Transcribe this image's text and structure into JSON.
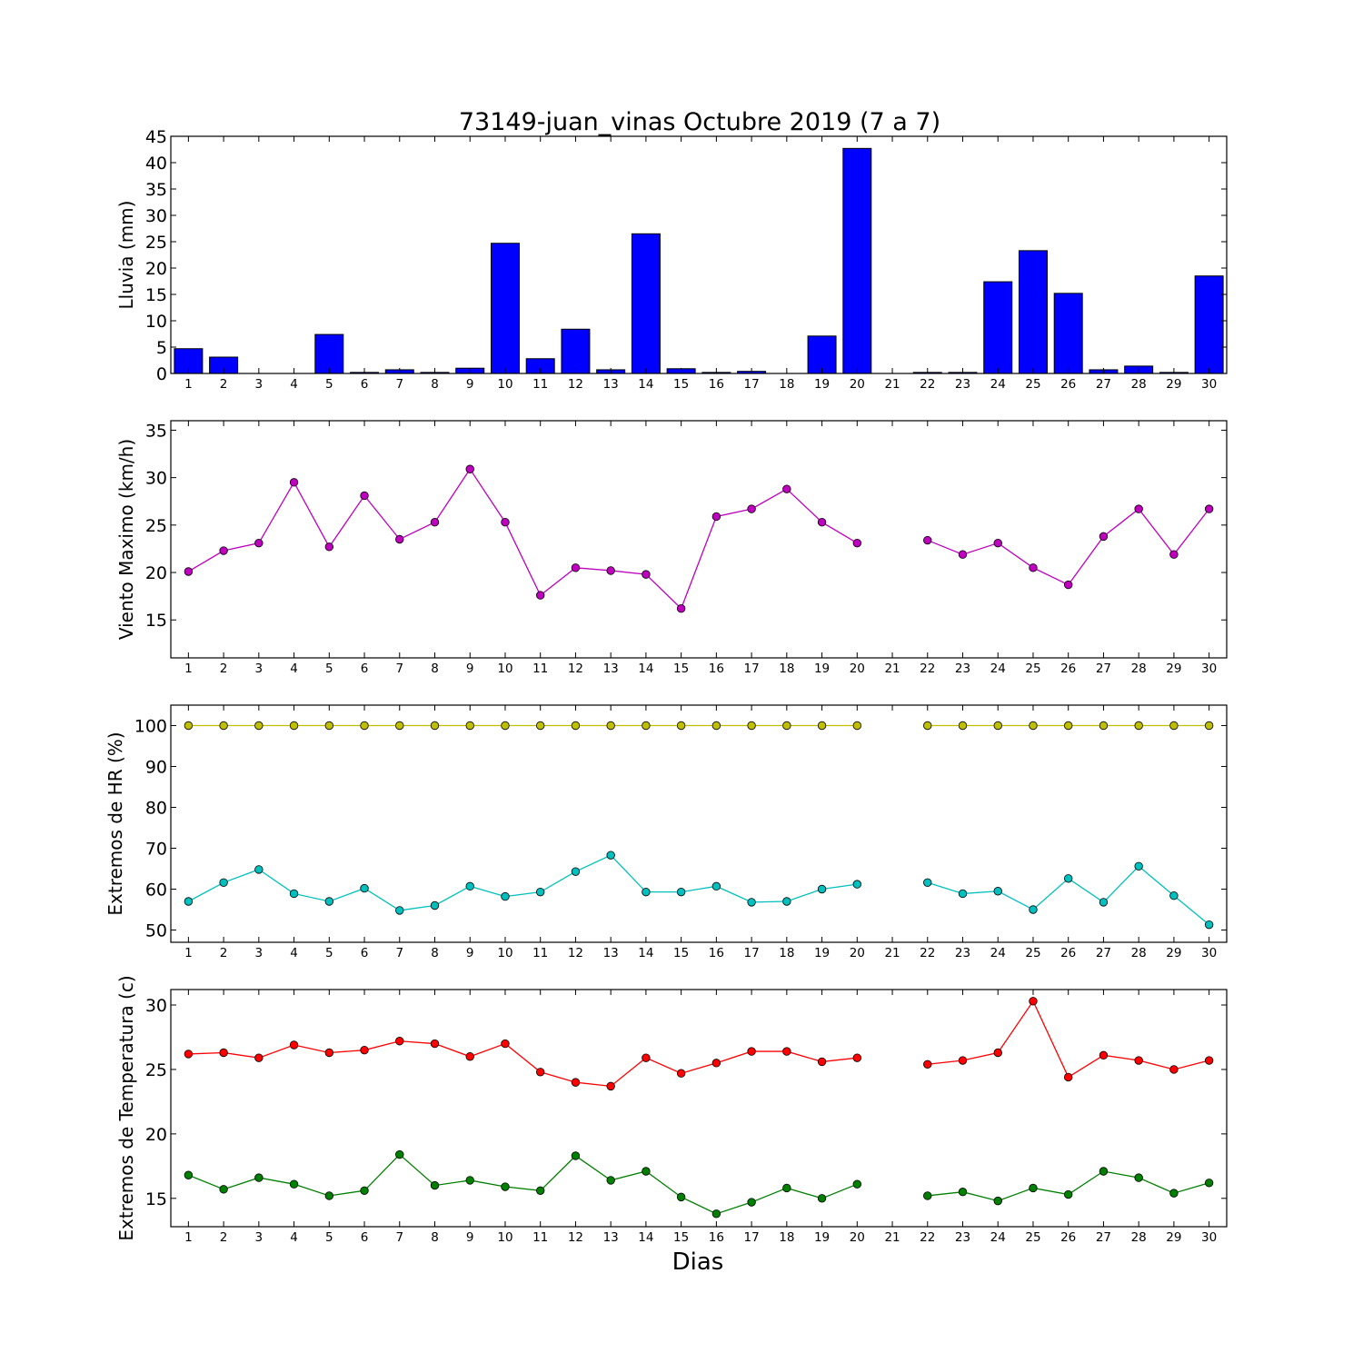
{
  "title": "73149-juan_vinas Octubre 2019  (7 a 7)",
  "xlabel": "Dias",
  "days": [
    1,
    2,
    3,
    4,
    5,
    6,
    7,
    8,
    9,
    10,
    11,
    12,
    13,
    14,
    15,
    16,
    17,
    18,
    19,
    20,
    21,
    22,
    23,
    24,
    25,
    26,
    27,
    28,
    29,
    30
  ],
  "chart_data": [
    {
      "type": "bar",
      "ylabel": "Lluvia (mm)",
      "ylim": [
        0,
        45
      ],
      "yticks": [
        0,
        5,
        10,
        15,
        20,
        25,
        30,
        35,
        40,
        45
      ],
      "grid": false,
      "color": "#0000ff",
      "series": [
        {
          "x": [
            1,
            2,
            3,
            4,
            5,
            6,
            7,
            8,
            9,
            10,
            11,
            12,
            13,
            14,
            15,
            16,
            17,
            18,
            19,
            20,
            21,
            22,
            23,
            24,
            25,
            26,
            27,
            28,
            29,
            30
          ],
          "values": [
            4.7,
            3.1,
            0,
            0,
            7.4,
            0.2,
            0.7,
            0.2,
            1.0,
            24.7,
            2.8,
            8.4,
            0.7,
            26.5,
            0.9,
            0.2,
            0.4,
            0,
            7.1,
            42.7,
            0,
            0.2,
            0.2,
            17.4,
            23.3,
            15.2,
            0.7,
            1.4,
            0.2,
            18.5
          ]
        }
      ]
    },
    {
      "type": "line",
      "ylabel": "Viento Maximo (km/h)",
      "ylim": [
        11,
        36
      ],
      "yticks": [
        15,
        20,
        25,
        30,
        35
      ],
      "grid": false,
      "series": [
        {
          "color": "#bf00bf",
          "x": [
            1,
            2,
            3,
            4,
            5,
            6,
            7,
            8,
            9,
            10,
            11,
            12,
            13,
            14,
            15,
            16,
            17,
            18,
            19,
            20,
            21,
            22,
            23,
            24,
            25,
            26,
            27,
            28,
            29,
            30
          ],
          "values": [
            20.1,
            22.3,
            23.1,
            29.5,
            22.7,
            28.1,
            23.5,
            25.3,
            30.9,
            25.3,
            17.6,
            20.5,
            20.2,
            19.8,
            16.2,
            25.9,
            26.7,
            28.8,
            25.3,
            23.1,
            null,
            23.4,
            21.9,
            23.1,
            20.5,
            18.7,
            23.8,
            26.7,
            21.9,
            26.7
          ]
        }
      ]
    },
    {
      "type": "line",
      "ylabel": "Extremos de HR (%)",
      "ylim": [
        47,
        105
      ],
      "yticks": [
        50,
        60,
        70,
        80,
        90,
        100
      ],
      "grid": false,
      "series": [
        {
          "color": "#bfbf00",
          "x": [
            1,
            2,
            3,
            4,
            5,
            6,
            7,
            8,
            9,
            10,
            11,
            12,
            13,
            14,
            15,
            16,
            17,
            18,
            19,
            20,
            21,
            22,
            23,
            24,
            25,
            26,
            27,
            28,
            29,
            30
          ],
          "values": [
            100,
            100,
            100,
            100,
            100,
            100,
            100,
            100,
            100,
            100,
            100,
            100,
            100,
            100,
            100,
            100,
            100,
            100,
            100,
            100,
            null,
            100,
            100,
            100,
            100,
            100,
            100,
            100,
            100,
            100
          ]
        },
        {
          "color": "#00bfbf",
          "x": [
            1,
            2,
            3,
            4,
            5,
            6,
            7,
            8,
            9,
            10,
            11,
            12,
            13,
            14,
            15,
            16,
            17,
            18,
            19,
            20,
            21,
            22,
            23,
            24,
            25,
            26,
            27,
            28,
            29,
            30
          ],
          "values": [
            57.0,
            61.6,
            64.8,
            58.9,
            57.0,
            60.2,
            54.8,
            56.0,
            60.7,
            58.2,
            59.3,
            64.3,
            68.3,
            59.3,
            59.3,
            60.7,
            56.8,
            57.0,
            60.0,
            61.2,
            null,
            61.6,
            58.9,
            59.5,
            55.0,
            62.6,
            56.8,
            65.6,
            58.4,
            51.3
          ]
        }
      ]
    },
    {
      "type": "line",
      "ylabel": "Extremos de Temperatura (c)",
      "ylim": [
        12.8,
        31.2
      ],
      "yticks": [
        15,
        20,
        25,
        30
      ],
      "grid": false,
      "series": [
        {
          "color": "#ff0000",
          "x": [
            1,
            2,
            3,
            4,
            5,
            6,
            7,
            8,
            9,
            10,
            11,
            12,
            13,
            14,
            15,
            16,
            17,
            18,
            19,
            20,
            21,
            22,
            23,
            24,
            25,
            26,
            27,
            28,
            29,
            30
          ],
          "values": [
            26.2,
            26.3,
            25.9,
            26.9,
            26.3,
            26.5,
            27.2,
            27.0,
            26.0,
            27.0,
            24.8,
            24.0,
            23.7,
            25.9,
            24.7,
            25.5,
            26.4,
            26.4,
            25.6,
            25.9,
            null,
            25.4,
            25.7,
            26.3,
            30.3,
            24.4,
            26.1,
            25.7,
            25.0,
            25.7
          ]
        },
        {
          "color": "#008000",
          "x": [
            1,
            2,
            3,
            4,
            5,
            6,
            7,
            8,
            9,
            10,
            11,
            12,
            13,
            14,
            15,
            16,
            17,
            18,
            19,
            20,
            21,
            22,
            23,
            24,
            25,
            26,
            27,
            28,
            29,
            30
          ],
          "values": [
            16.8,
            15.7,
            16.6,
            16.1,
            15.2,
            15.6,
            18.4,
            16.0,
            16.4,
            15.9,
            15.6,
            18.3,
            16.4,
            17.1,
            15.1,
            13.8,
            14.7,
            15.8,
            15.0,
            16.1,
            null,
            15.2,
            15.5,
            14.8,
            15.8,
            15.3,
            17.1,
            16.6,
            15.4,
            16.2
          ]
        }
      ]
    }
  ]
}
